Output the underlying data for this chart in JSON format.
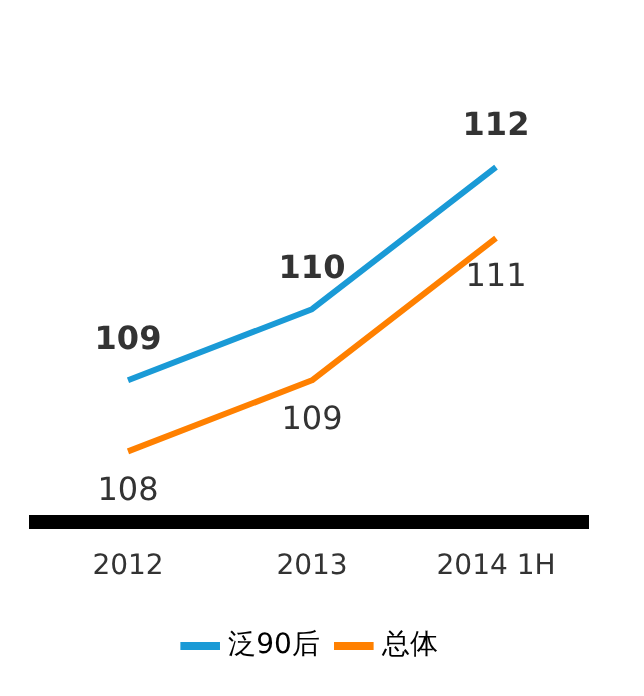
{
  "chart_data": {
    "type": "line",
    "categories": [
      "2012",
      "2013",
      "2014 1H"
    ],
    "series": [
      {
        "name": "泛90后",
        "color": "#1a9ad6",
        "values": [
          109,
          110,
          112
        ]
      },
      {
        "name": "总体",
        "color": "#ff8000",
        "values": [
          108,
          109,
          111
        ]
      }
    ],
    "data_labels": true,
    "legend": "bottom",
    "grid": false,
    "marker": "none",
    "line_style": "solid"
  }
}
